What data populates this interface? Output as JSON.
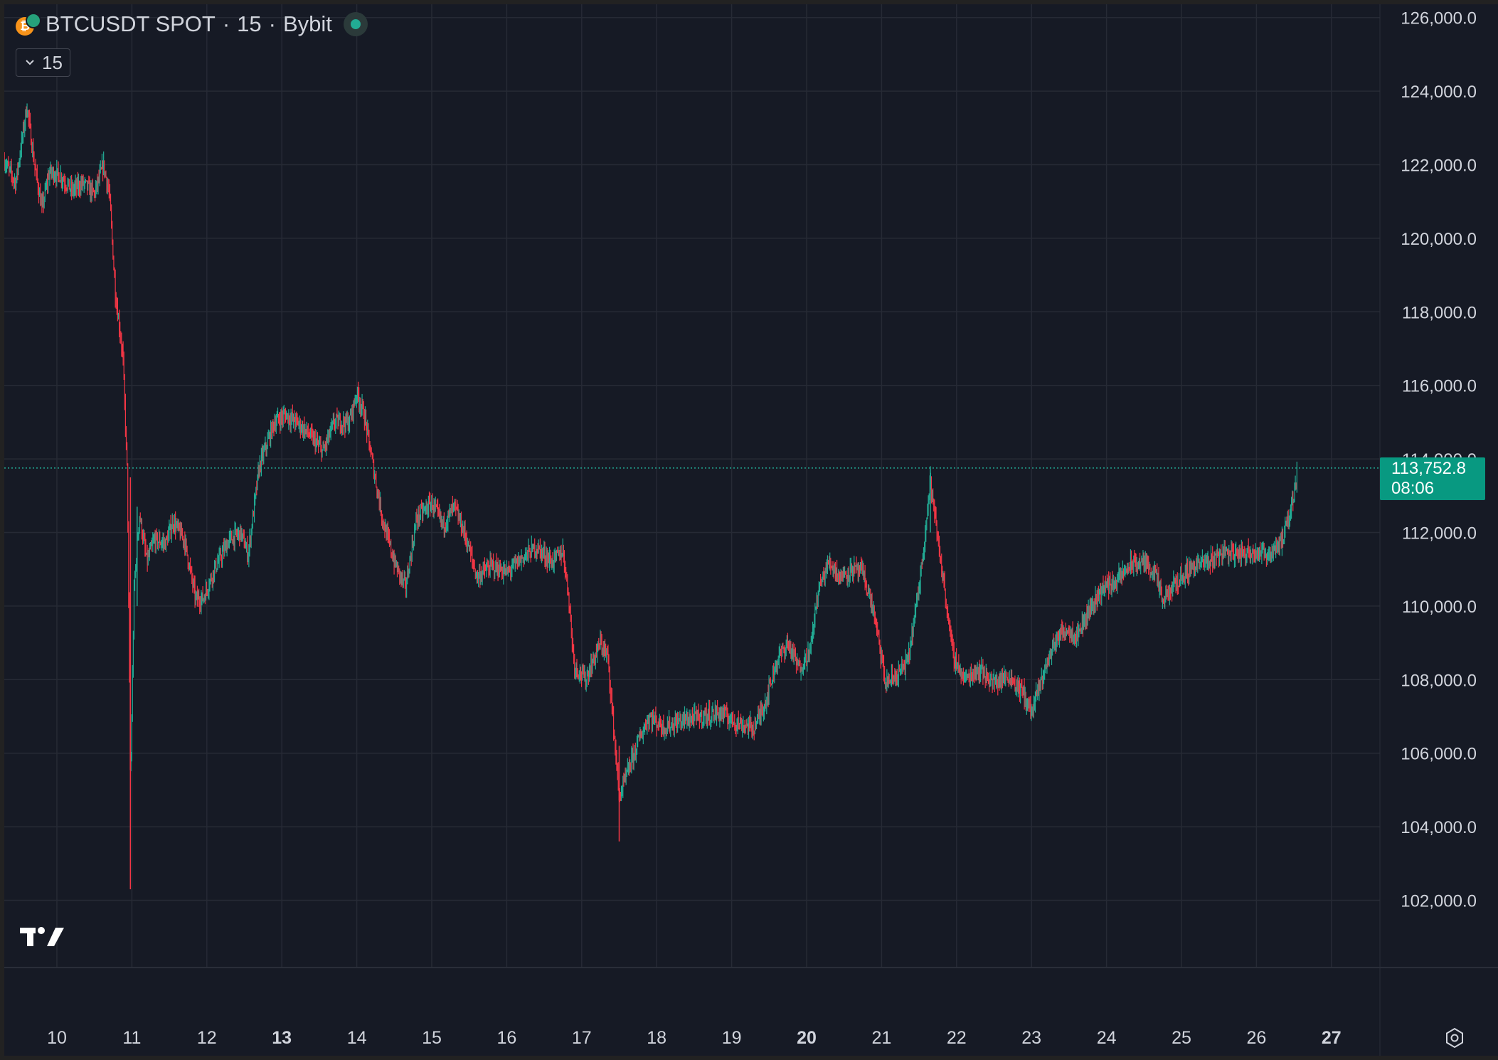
{
  "legend": {
    "symbol": "BTCUSDT SPOT",
    "separator1": "·",
    "interval": "15",
    "separator2": "·",
    "exchange": "Bybit",
    "status_icon": "market-open-dot-icon",
    "coin_icon": "btc-usdt-icon"
  },
  "interval_button": {
    "label": "15",
    "icon": "chevron-down-icon"
  },
  "last_price": {
    "value": "113,752.8",
    "countdown": "08:06"
  },
  "colors": {
    "background": "#161a25",
    "grid": "#262a35",
    "up": "#22ab94",
    "down": "#f23645",
    "text": "#d1d4dc",
    "price_tag": "#089981"
  },
  "chart_data": {
    "type": "candlestick",
    "title": "BTCUSDT SPOT · 15 · Bybit",
    "ylim": [
      100400,
      126400
    ],
    "xlim": [
      9.3,
      27.2
    ],
    "grid": true,
    "price_axis_position": "right",
    "y_ticks": [
      "126,000.0",
      "124,000.0",
      "122,000.0",
      "120,000.0",
      "118,000.0",
      "116,000.0",
      "114,000.0",
      "112,000.0",
      "110,000.0",
      "108,000.0",
      "106,000.0",
      "104,000.0",
      "102,000.0"
    ],
    "y_tick_values": [
      126000,
      124000,
      122000,
      120000,
      118000,
      116000,
      114000,
      112000,
      110000,
      108000,
      106000,
      104000,
      102000
    ],
    "x_ticks": [
      {
        "label": "10",
        "value": 10,
        "bold": false
      },
      {
        "label": "11",
        "value": 11,
        "bold": false
      },
      {
        "label": "12",
        "value": 12,
        "bold": false
      },
      {
        "label": "13",
        "value": 13,
        "bold": true
      },
      {
        "label": "14",
        "value": 14,
        "bold": false
      },
      {
        "label": "15",
        "value": 15,
        "bold": false
      },
      {
        "label": "16",
        "value": 16,
        "bold": false
      },
      {
        "label": "17",
        "value": 17,
        "bold": false
      },
      {
        "label": "18",
        "value": 18,
        "bold": false
      },
      {
        "label": "19",
        "value": 19,
        "bold": false
      },
      {
        "label": "20",
        "value": 20,
        "bold": true
      },
      {
        "label": "21",
        "value": 21,
        "bold": false
      },
      {
        "label": "22",
        "value": 22,
        "bold": false
      },
      {
        "label": "23",
        "value": 23,
        "bold": false
      },
      {
        "label": "24",
        "value": 24,
        "bold": false
      },
      {
        "label": "25",
        "value": 25,
        "bold": false
      },
      {
        "label": "26",
        "value": 26,
        "bold": false
      },
      {
        "label": "27",
        "value": 27,
        "bold": true
      }
    ],
    "last_price": 113752.8,
    "price_path": [
      [
        9.3,
        122100
      ],
      [
        9.45,
        121500
      ],
      [
        9.6,
        123600
      ],
      [
        9.7,
        122000
      ],
      [
        9.8,
        120800
      ],
      [
        9.9,
        121800
      ],
      [
        10.05,
        121700
      ],
      [
        10.2,
        121300
      ],
      [
        10.35,
        121500
      ],
      [
        10.5,
        121200
      ],
      [
        10.62,
        122000
      ],
      [
        10.7,
        121200
      ],
      [
        10.78,
        118500
      ],
      [
        10.88,
        116800
      ],
      [
        10.94,
        113500
      ],
      [
        10.98,
        105000
      ],
      [
        11.03,
        110500
      ],
      [
        11.1,
        112500
      ],
      [
        11.2,
        111200
      ],
      [
        11.3,
        111800
      ],
      [
        11.45,
        111700
      ],
      [
        11.55,
        112300
      ],
      [
        11.7,
        111800
      ],
      [
        11.85,
        110200
      ],
      [
        11.95,
        110200
      ],
      [
        12.1,
        111000
      ],
      [
        12.3,
        111800
      ],
      [
        12.45,
        112000
      ],
      [
        12.55,
        111400
      ],
      [
        12.7,
        113800
      ],
      [
        12.9,
        115000
      ],
      [
        13.05,
        115200
      ],
      [
        13.2,
        115000
      ],
      [
        13.35,
        114700
      ],
      [
        13.55,
        114200
      ],
      [
        13.7,
        115000
      ],
      [
        13.9,
        115000
      ],
      [
        14.0,
        115800
      ],
      [
        14.1,
        115200
      ],
      [
        14.2,
        114000
      ],
      [
        14.35,
        112300
      ],
      [
        14.5,
        111200
      ],
      [
        14.65,
        110500
      ],
      [
        14.8,
        112400
      ],
      [
        15.0,
        112800
      ],
      [
        15.15,
        112200
      ],
      [
        15.3,
        112700
      ],
      [
        15.45,
        111900
      ],
      [
        15.6,
        110800
      ],
      [
        15.8,
        111100
      ],
      [
        16.0,
        110900
      ],
      [
        16.2,
        111300
      ],
      [
        16.4,
        111600
      ],
      [
        16.6,
        111200
      ],
      [
        16.75,
        111500
      ],
      [
        16.82,
        110400
      ],
      [
        16.9,
        108400
      ],
      [
        17.05,
        108000
      ],
      [
        17.15,
        108500
      ],
      [
        17.25,
        109000
      ],
      [
        17.35,
        108600
      ],
      [
        17.5,
        104800
      ],
      [
        17.6,
        105400
      ],
      [
        17.75,
        106300
      ],
      [
        17.9,
        107000
      ],
      [
        18.1,
        106700
      ],
      [
        18.35,
        106900
      ],
      [
        18.6,
        107000
      ],
      [
        18.85,
        107100
      ],
      [
        19.1,
        106800
      ],
      [
        19.3,
        106700
      ],
      [
        19.45,
        107400
      ],
      [
        19.6,
        108500
      ],
      [
        19.75,
        109000
      ],
      [
        19.9,
        108300
      ],
      [
        20.05,
        108800
      ],
      [
        20.15,
        110400
      ],
      [
        20.3,
        111200
      ],
      [
        20.45,
        110800
      ],
      [
        20.6,
        111000
      ],
      [
        20.75,
        110900
      ],
      [
        20.9,
        109800
      ],
      [
        21.05,
        107900
      ],
      [
        21.2,
        108100
      ],
      [
        21.35,
        108500
      ],
      [
        21.5,
        110500
      ],
      [
        21.65,
        113400
      ],
      [
        21.75,
        111800
      ],
      [
        21.85,
        110300
      ],
      [
        21.95,
        108700
      ],
      [
        22.1,
        108000
      ],
      [
        22.3,
        108300
      ],
      [
        22.5,
        107900
      ],
      [
        22.7,
        108100
      ],
      [
        22.9,
        107600
      ],
      [
        23.0,
        107100
      ],
      [
        23.15,
        108100
      ],
      [
        23.3,
        109000
      ],
      [
        23.45,
        109400
      ],
      [
        23.6,
        109200
      ],
      [
        23.8,
        110000
      ],
      [
        23.95,
        110500
      ],
      [
        24.15,
        110700
      ],
      [
        24.3,
        111100
      ],
      [
        24.5,
        111200
      ],
      [
        24.65,
        110900
      ],
      [
        24.75,
        110100
      ],
      [
        24.95,
        110700
      ],
      [
        25.15,
        111100
      ],
      [
        25.35,
        111200
      ],
      [
        25.55,
        111500
      ],
      [
        25.75,
        111400
      ],
      [
        25.95,
        111500
      ],
      [
        26.15,
        111400
      ],
      [
        26.35,
        111800
      ],
      [
        26.45,
        112500
      ],
      [
        26.55,
        113750
      ]
    ]
  },
  "settings_icon": "settings-gear-icon",
  "logo": "tradingview-logo"
}
